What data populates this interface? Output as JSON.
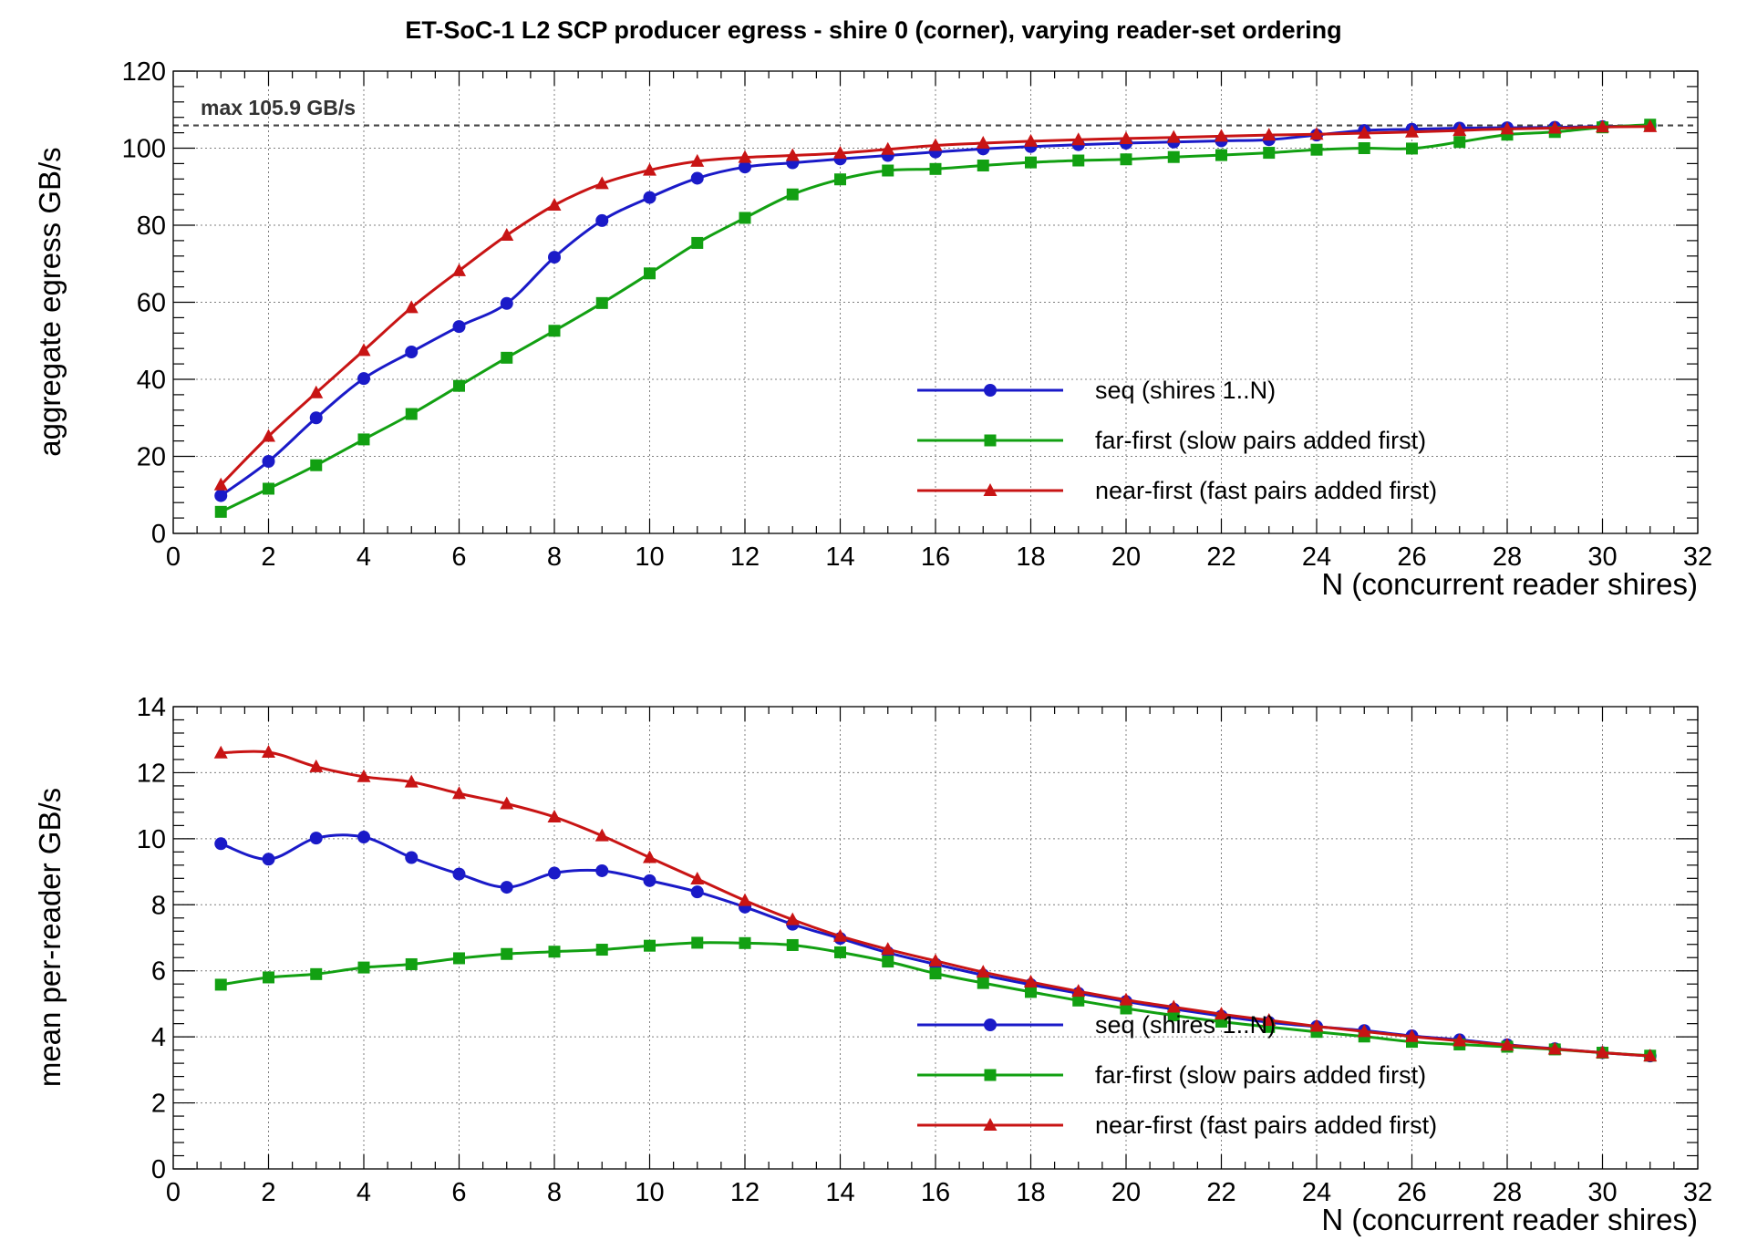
{
  "title": "ET-SoC-1 L2 SCP producer egress  -  shire 0 (corner), varying reader-set ordering",
  "colors": {
    "seq": "#1a1ac8",
    "far": "#12a012",
    "near": "#c81414"
  },
  "chart_data": [
    {
      "type": "line",
      "name": "aggregate",
      "xlabel": "N (concurrent reader shires)",
      "ylabel": "aggregate egress GB/s",
      "xlim": [
        0,
        32
      ],
      "ylim": [
        0,
        120
      ],
      "x_ticks": [
        0,
        2,
        4,
        6,
        8,
        10,
        12,
        14,
        16,
        18,
        20,
        22,
        24,
        26,
        28,
        30,
        32
      ],
      "y_ticks": [
        0,
        20,
        40,
        60,
        80,
        100,
        120
      ],
      "grid": true,
      "legend_position": "lower-right",
      "annotation": {
        "text": "max 105.9 GB/s",
        "value": 105.9
      },
      "series": [
        {
          "name": "seq (shires 1..N)",
          "marker": "circle",
          "color_key": "seq",
          "x": [
            1,
            2,
            3,
            4,
            5,
            6,
            7,
            8,
            9,
            10,
            11,
            12,
            13,
            14,
            15,
            16,
            17,
            18,
            19,
            20,
            21,
            22,
            23,
            24,
            25,
            26,
            27,
            28,
            29,
            30,
            31
          ],
          "values": [
            9.8,
            18.7,
            30.0,
            40.2,
            47.1,
            53.7,
            59.7,
            71.7,
            81.2,
            87.2,
            92.2,
            95.1,
            96.2,
            97.2,
            98.1,
            99.0,
            99.8,
            100.4,
            100.9,
            101.3,
            101.6,
            101.9,
            102.2,
            103.4,
            104.6,
            104.9,
            105.2,
            105.3,
            105.4,
            105.6,
            105.9
          ]
        },
        {
          "name": "far-first (slow pairs added first)",
          "marker": "square",
          "color_key": "far",
          "x": [
            1,
            2,
            3,
            4,
            5,
            6,
            7,
            8,
            9,
            10,
            11,
            12,
            13,
            14,
            15,
            16,
            17,
            18,
            19,
            20,
            21,
            22,
            23,
            24,
            25,
            26,
            27,
            28,
            29,
            30,
            31
          ],
          "values": [
            5.6,
            11.6,
            17.7,
            24.4,
            31.0,
            38.3,
            45.6,
            52.6,
            59.8,
            67.5,
            75.4,
            81.9,
            88.0,
            91.9,
            94.2,
            94.6,
            95.5,
            96.3,
            96.8,
            97.1,
            97.7,
            98.2,
            98.8,
            99.6,
            100.0,
            99.9,
            101.6,
            103.5,
            104.2,
            105.4,
            106.1
          ]
        },
        {
          "name": "near-first (fast pairs added first)",
          "marker": "triangle",
          "color_key": "near",
          "x": [
            1,
            2,
            3,
            4,
            5,
            6,
            7,
            8,
            9,
            10,
            11,
            12,
            13,
            14,
            15,
            16,
            17,
            18,
            19,
            20,
            21,
            22,
            23,
            24,
            25,
            26,
            27,
            28,
            29,
            30,
            31
          ],
          "values": [
            12.6,
            25.2,
            36.5,
            47.5,
            58.6,
            68.2,
            77.4,
            85.2,
            90.8,
            94.3,
            96.6,
            97.6,
            98.1,
            98.7,
            99.7,
            100.7,
            101.3,
            101.8,
            102.2,
            102.5,
            102.8,
            103.1,
            103.4,
            103.6,
            103.9,
            104.2,
            104.6,
            105.0,
            105.2,
            105.5,
            105.6
          ]
        }
      ]
    },
    {
      "type": "line",
      "name": "per_reader",
      "xlabel": "N (concurrent reader shires)",
      "ylabel": "mean per-reader GB/s",
      "xlim": [
        0,
        32
      ],
      "ylim": [
        0,
        14
      ],
      "x_ticks": [
        0,
        2,
        4,
        6,
        8,
        10,
        12,
        14,
        16,
        18,
        20,
        22,
        24,
        26,
        28,
        30,
        32
      ],
      "y_ticks": [
        0,
        2,
        4,
        6,
        8,
        10,
        12,
        14
      ],
      "grid": true,
      "legend_position": "lower-right",
      "series": [
        {
          "name": "seq (shires 1..N)",
          "marker": "circle",
          "color_key": "seq",
          "x": [
            1,
            2,
            3,
            4,
            5,
            6,
            7,
            8,
            9,
            10,
            11,
            12,
            13,
            14,
            15,
            16,
            17,
            18,
            19,
            20,
            21,
            22,
            23,
            24,
            25,
            26,
            27,
            28,
            29,
            30,
            31
          ],
          "values": [
            9.85,
            9.38,
            10.02,
            10.05,
            9.43,
            8.93,
            8.53,
            8.96,
            9.03,
            8.73,
            8.39,
            7.93,
            7.41,
            6.98,
            6.55,
            6.2,
            5.87,
            5.58,
            5.32,
            5.07,
            4.84,
            4.63,
            4.44,
            4.31,
            4.19,
            4.03,
            3.91,
            3.76,
            3.64,
            3.52,
            3.42
          ]
        },
        {
          "name": "far-first (slow pairs added first)",
          "marker": "square",
          "color_key": "far",
          "x": [
            1,
            2,
            3,
            4,
            5,
            6,
            7,
            8,
            9,
            10,
            11,
            12,
            13,
            14,
            15,
            16,
            17,
            18,
            19,
            20,
            21,
            22,
            23,
            24,
            25,
            26,
            27,
            28,
            29,
            30,
            31
          ],
          "values": [
            5.58,
            5.8,
            5.9,
            6.1,
            6.2,
            6.38,
            6.51,
            6.58,
            6.64,
            6.76,
            6.85,
            6.84,
            6.78,
            6.56,
            6.28,
            5.92,
            5.63,
            5.36,
            5.1,
            4.86,
            4.65,
            4.46,
            4.3,
            4.15,
            4.01,
            3.85,
            3.77,
            3.7,
            3.62,
            3.52,
            3.43
          ]
        },
        {
          "name": "near-first (fast pairs added first)",
          "marker": "triangle",
          "color_key": "near",
          "x": [
            1,
            2,
            3,
            4,
            5,
            6,
            7,
            8,
            9,
            10,
            11,
            12,
            13,
            14,
            15,
            16,
            17,
            18,
            19,
            20,
            21,
            22,
            23,
            24,
            25,
            26,
            27,
            28,
            29,
            30,
            31
          ],
          "values": [
            12.6,
            12.62,
            12.18,
            11.88,
            11.72,
            11.37,
            11.06,
            10.66,
            10.09,
            9.43,
            8.78,
            8.13,
            7.55,
            7.05,
            6.65,
            6.3,
            5.96,
            5.66,
            5.38,
            5.12,
            4.9,
            4.69,
            4.5,
            4.32,
            4.16,
            4.01,
            3.88,
            3.75,
            3.63,
            3.52,
            3.42
          ]
        }
      ]
    }
  ]
}
